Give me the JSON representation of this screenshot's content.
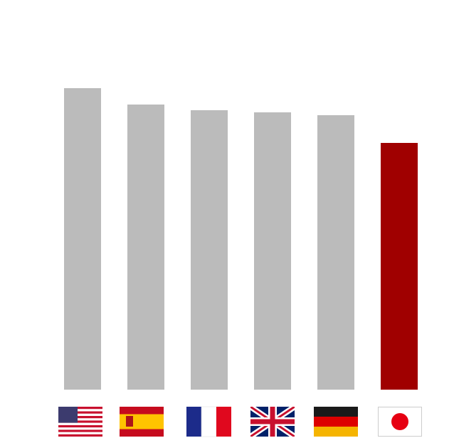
{
  "chart_data": {
    "type": "bar",
    "categories": [
      null,
      null,
      null,
      null,
      null,
      null
    ],
    "values": [
      424,
      401,
      393,
      390,
      386,
      347
    ],
    "colors": [
      "#bbbbbb",
      "#bbbbbb",
      "#bbbbbb",
      "#bbbbbb",
      "#bbbbbb",
      "#a00000"
    ],
    "ylim": [
      0,
      548
    ]
  }
}
